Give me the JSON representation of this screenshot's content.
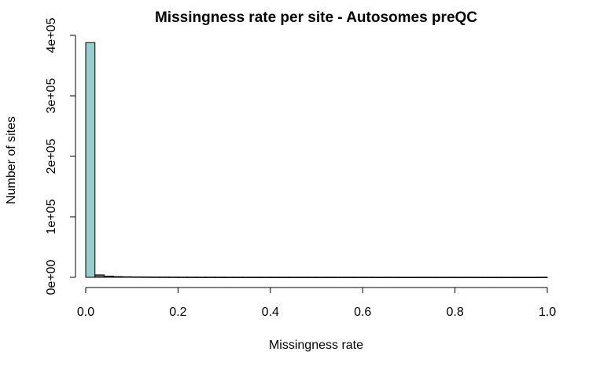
{
  "chart_data": {
    "type": "bar",
    "title": "Missingness rate per site - Autosomes preQC",
    "xlabel": "Missingness rate",
    "ylabel": "Number of sites",
    "xlim": [
      0,
      1
    ],
    "ylim": [
      0,
      400000
    ],
    "bin_width": 0.02,
    "x_ticks": [
      {
        "value": 0.0,
        "label": "0.0"
      },
      {
        "value": 0.2,
        "label": "0.2"
      },
      {
        "value": 0.4,
        "label": "0.4"
      },
      {
        "value": 0.6,
        "label": "0.6"
      },
      {
        "value": 0.8,
        "label": "0.8"
      },
      {
        "value": 1.0,
        "label": "1.0"
      }
    ],
    "y_ticks": [
      {
        "value": 0,
        "label": "0e+00"
      },
      {
        "value": 100000,
        "label": "1e+05"
      },
      {
        "value": 200000,
        "label": "2e+05"
      },
      {
        "value": 300000,
        "label": "3e+05"
      },
      {
        "value": 400000,
        "label": "4e+05"
      }
    ],
    "bin_starts": [
      0.0,
      0.02,
      0.04,
      0.06,
      0.08,
      0.1,
      0.12,
      0.14,
      0.16,
      0.18,
      0.2,
      0.22,
      0.24,
      0.26,
      0.28,
      0.3,
      0.32,
      0.34,
      0.36,
      0.38,
      0.4,
      0.42,
      0.44,
      0.46,
      0.48,
      0.5,
      0.52,
      0.54,
      0.56,
      0.58,
      0.6,
      0.62,
      0.64,
      0.66,
      0.68,
      0.7,
      0.72,
      0.74,
      0.76,
      0.78,
      0.8,
      0.82,
      0.84,
      0.86,
      0.88,
      0.9,
      0.92,
      0.94,
      0.96,
      0.98
    ],
    "values": [
      388000,
      4000,
      2000,
      1200,
      900,
      700,
      600,
      500,
      450,
      400,
      350,
      320,
      300,
      280,
      260,
      240,
      230,
      220,
      210,
      200,
      190,
      180,
      175,
      170,
      165,
      160,
      155,
      150,
      145,
      140,
      135,
      130,
      125,
      120,
      118,
      115,
      112,
      110,
      108,
      105,
      102,
      100,
      98,
      96,
      94,
      92,
      90,
      88,
      86,
      150
    ],
    "colors": {
      "first_bar": "#96cdcd",
      "other_bars": "#666666"
    }
  }
}
